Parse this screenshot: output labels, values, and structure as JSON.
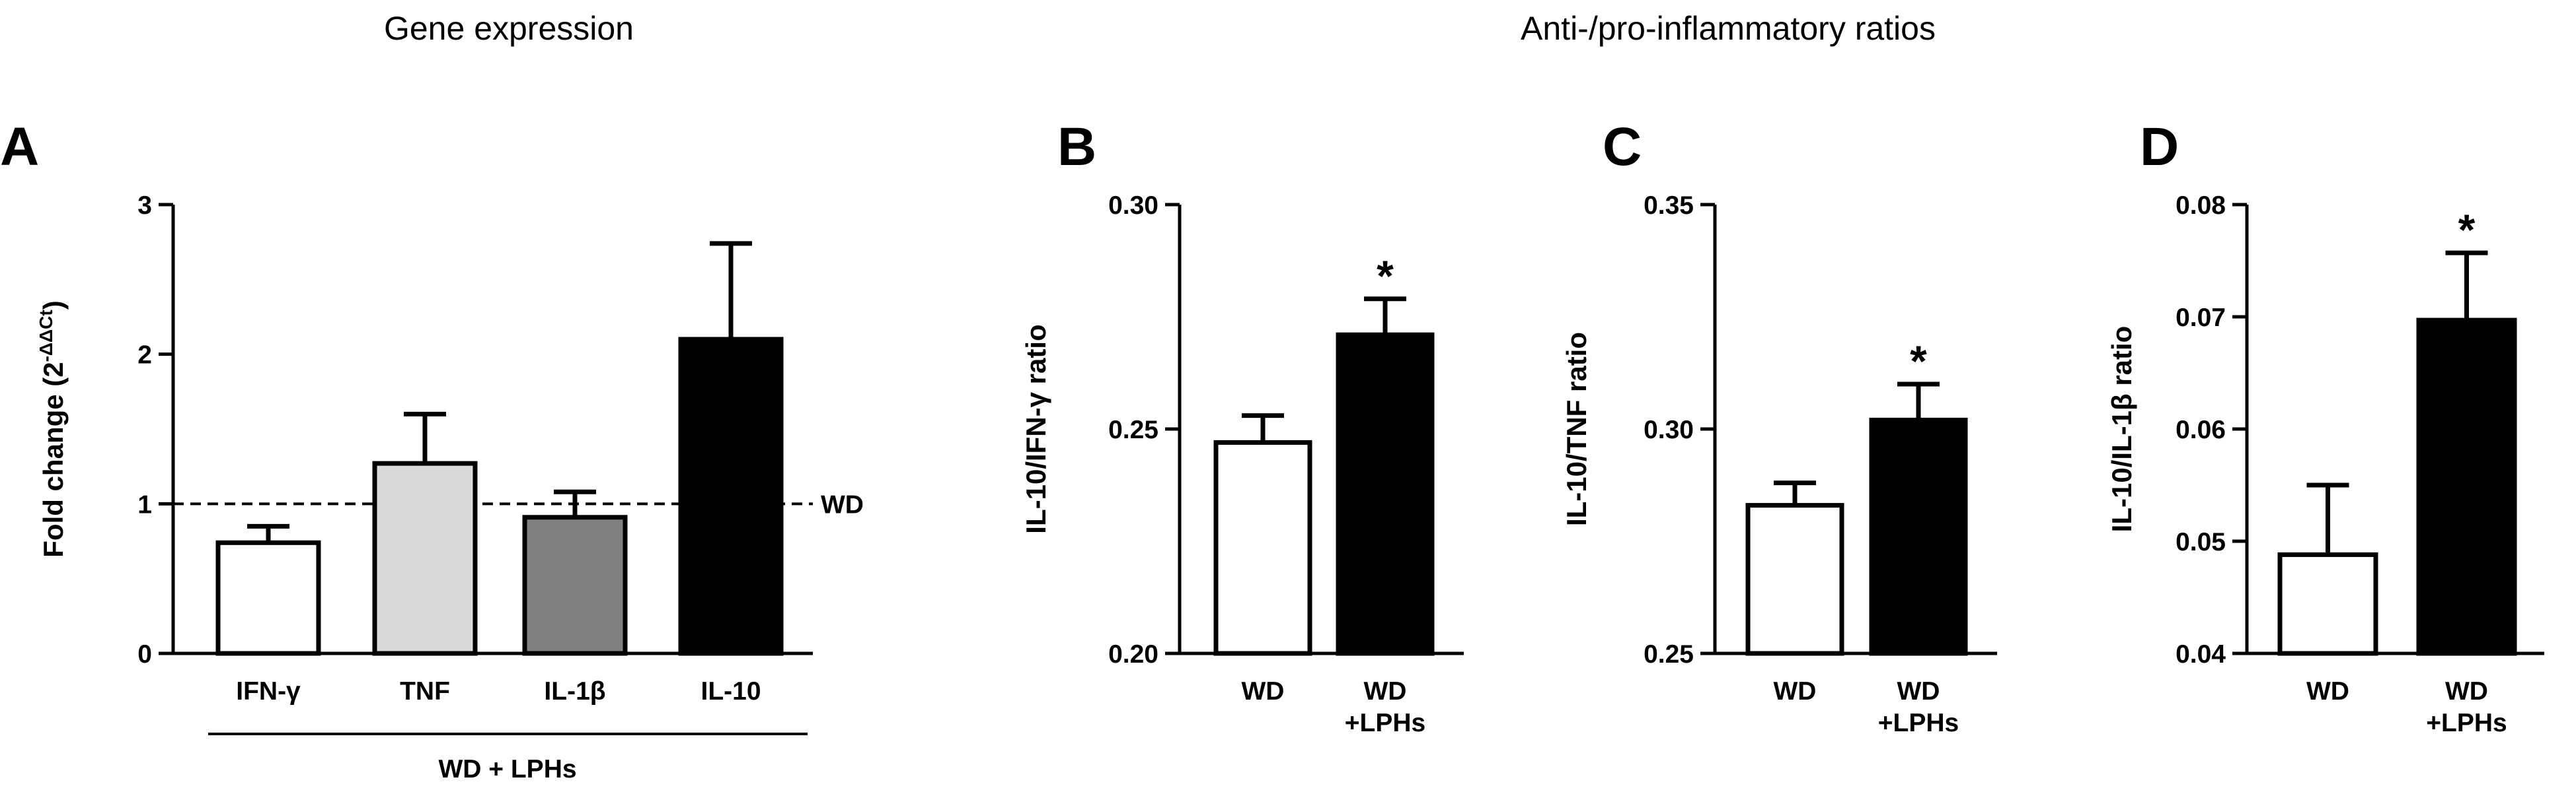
{
  "headings": {
    "left": "Gene expression",
    "right": "Anti-/pro-inflammatory ratios"
  },
  "group_label": "WD + LPHs",
  "reference_label": "WD",
  "chart_data": [
    {
      "id": "A",
      "panel": "A",
      "type": "bar",
      "ylabel": "Fold change (2",
      "ylabel_sup": "-ΔΔCt",
      "ylabel_end": ")",
      "ylim": [
        0,
        3
      ],
      "yticks": [
        "0",
        "1",
        "2",
        "3"
      ],
      "categories": [
        "IFN-γ",
        "TNF",
        "IL-1β",
        "IL-10"
      ],
      "values": [
        0.74,
        1.27,
        0.91,
        2.1
      ],
      "errors": [
        0.11,
        0.33,
        0.17,
        0.64
      ],
      "colors": [
        "#ffffff",
        "#d9d9d9",
        "#808080",
        "#000000"
      ],
      "reference_line": 1,
      "significance": [
        "",
        "",
        "",
        ""
      ]
    },
    {
      "id": "B",
      "panel": "B",
      "type": "bar",
      "ylabel": "IL-10/IFN-γ ratio",
      "ylim": [
        0.2,
        0.3
      ],
      "yticks": [
        "0.20",
        "0.25",
        "0.30"
      ],
      "categories": [
        "WD",
        "WD +LPHs"
      ],
      "values": [
        0.247,
        0.271
      ],
      "errors": [
        0.006,
        0.008
      ],
      "colors": [
        "#ffffff",
        "#000000"
      ],
      "significance": [
        "",
        "*"
      ]
    },
    {
      "id": "C",
      "panel": "C",
      "type": "bar",
      "ylabel": "IL-10/TNF ratio",
      "ylim": [
        0.25,
        0.35
      ],
      "yticks": [
        "0.25",
        "0.30",
        "0.35"
      ],
      "categories": [
        "WD",
        "WD +LPHs"
      ],
      "values": [
        0.283,
        0.302
      ],
      "errors": [
        0.005,
        0.008
      ],
      "colors": [
        "#ffffff",
        "#000000"
      ],
      "significance": [
        "",
        "*"
      ]
    },
    {
      "id": "D",
      "panel": "D",
      "type": "bar",
      "ylabel": "IL-10/IL-1β ratio",
      "ylim": [
        0.04,
        0.08
      ],
      "yticks": [
        "0.04",
        "0.05",
        "0.06",
        "0.07",
        "0.08"
      ],
      "categories": [
        "WD",
        "WD +LPHs"
      ],
      "values": [
        0.0488,
        0.0697
      ],
      "errors": [
        0.0062,
        0.006
      ],
      "colors": [
        "#ffffff",
        "#000000"
      ],
      "significance": [
        "",
        "*"
      ]
    }
  ]
}
